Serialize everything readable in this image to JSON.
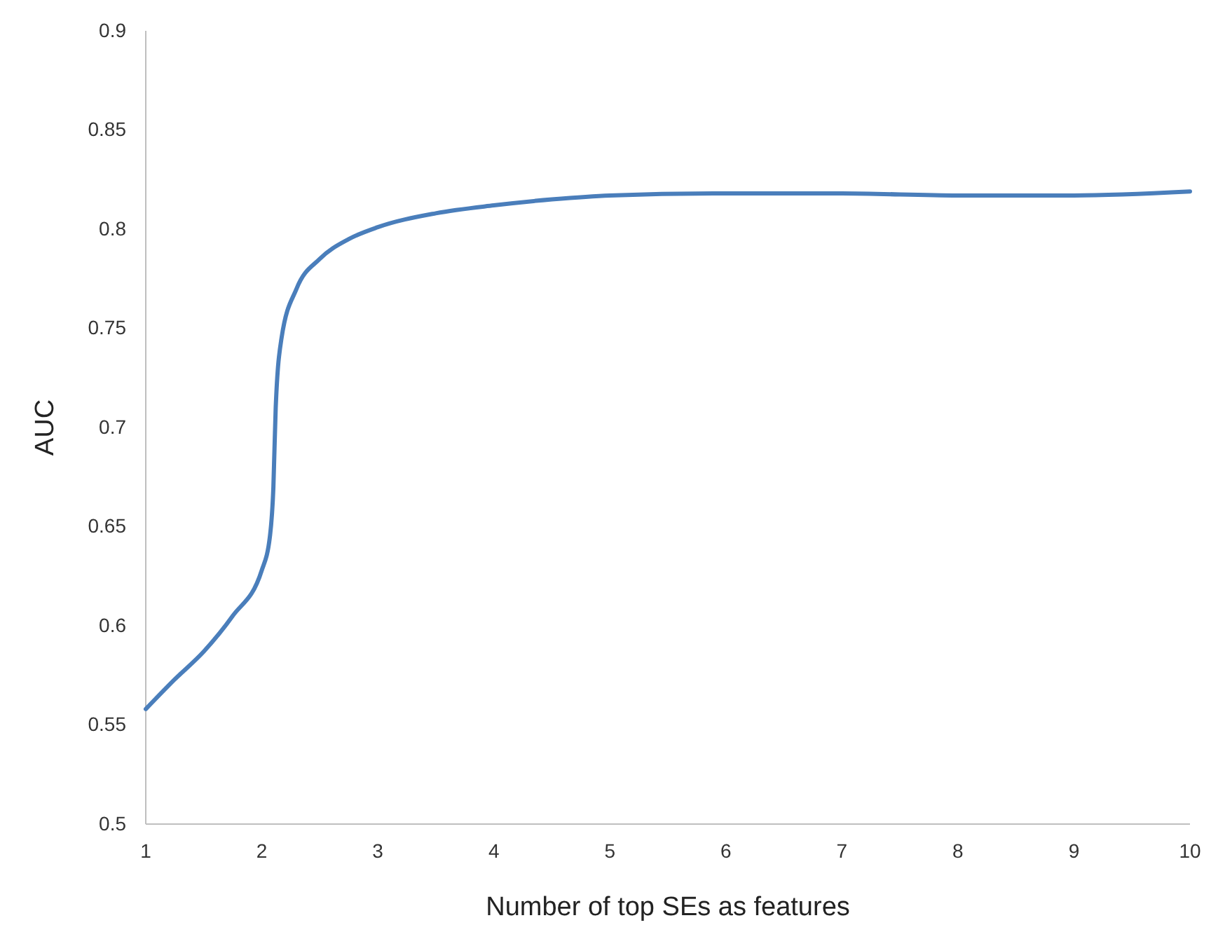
{
  "chart_data": {
    "type": "line",
    "xlabel": "Number  of top SEs as features",
    "ylabel": "AUC",
    "x": [
      1,
      1.25,
      1.5,
      1.75,
      2,
      2.07,
      2.1,
      2.12,
      2.17,
      2.3,
      2.5,
      2.75,
      3,
      3.5,
      4,
      4.5,
      5,
      6,
      7,
      8,
      9,
      10
    ],
    "series": [
      {
        "color": "#4a7ebb",
        "values": [
          0.558,
          0.573,
          0.587,
          0.605,
          0.628,
          0.645,
          0.67,
          0.71,
          0.745,
          0.77,
          0.785,
          0.795,
          0.801,
          0.808,
          0.812,
          0.815,
          0.817,
          0.818,
          0.818,
          0.817,
          0.817,
          0.819
        ]
      }
    ],
    "xlim": [
      1,
      10
    ],
    "xticks": [
      1,
      2,
      3,
      4,
      5,
      6,
      7,
      8,
      9,
      10
    ],
    "ylim": [
      0.5,
      0.9
    ],
    "yticks": [
      0.5,
      0.55,
      0.6,
      0.65,
      0.7,
      0.75,
      0.8,
      0.85,
      0.9
    ],
    "grid": false,
    "marker": "none",
    "line_style": "solid"
  }
}
